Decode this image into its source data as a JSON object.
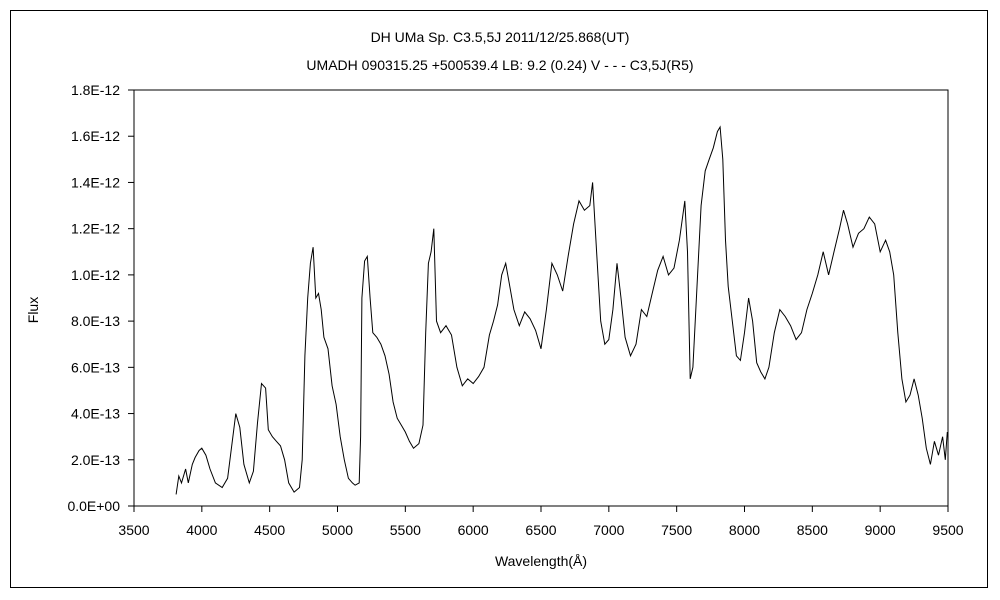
{
  "chart_data": {
    "type": "line",
    "title": "DH UMa    Sp. C3.5,5J    2011/12/25.868(UT)",
    "subtitle": "UMADH 090315.25 +500539.4 LB: 9.2 (0.24) V - - - C3,5J(R5)",
    "xlabel": "Wavelength(Å)",
    "ylabel": "Flux",
    "xlim": [
      3500,
      9500
    ],
    "ylim": [
      0,
      1.8e-12
    ],
    "x_ticks": [
      "3500",
      "4000",
      "4500",
      "5000",
      "5500",
      "6000",
      "6500",
      "7000",
      "7500",
      "8000",
      "8500",
      "9000",
      "9500"
    ],
    "y_ticks": [
      "0.0E+00",
      "2.0E-13",
      "4.0E-13",
      "6.0E-13",
      "8.0E-13",
      "1.0E-12",
      "1.2E-12",
      "1.4E-12",
      "1.6E-12",
      "1.8E-12"
    ],
    "grid": false,
    "legend": "none",
    "series": [
      {
        "color": "#000000",
        "points": [
          [
            3810,
            5e-14
          ],
          [
            3830,
            1.3e-13
          ],
          [
            3850,
            1e-13
          ],
          [
            3880,
            1.6e-13
          ],
          [
            3900,
            1e-13
          ],
          [
            3930,
            1.8e-13
          ],
          [
            3950,
            2.1e-13
          ],
          [
            3980,
            2.4e-13
          ],
          [
            4000,
            2.5e-13
          ],
          [
            4030,
            2.2e-13
          ],
          [
            4060,
            1.6e-13
          ],
          [
            4100,
            1e-13
          ],
          [
            4150,
            8e-14
          ],
          [
            4190,
            1.2e-13
          ],
          [
            4220,
            2.6e-13
          ],
          [
            4250,
            4e-13
          ],
          [
            4280,
            3.4e-13
          ],
          [
            4310,
            1.8e-13
          ],
          [
            4350,
            1e-13
          ],
          [
            4380,
            1.5e-13
          ],
          [
            4410,
            3.6e-13
          ],
          [
            4440,
            5.3e-13
          ],
          [
            4470,
            5.1e-13
          ],
          [
            4490,
            3.3e-13
          ],
          [
            4520,
            3e-13
          ],
          [
            4550,
            2.8e-13
          ],
          [
            4580,
            2.6e-13
          ],
          [
            4610,
            2e-13
          ],
          [
            4640,
            1e-13
          ],
          [
            4680,
            6e-14
          ],
          [
            4720,
            8e-14
          ],
          [
            4740,
            2e-13
          ],
          [
            4760,
            6.5e-13
          ],
          [
            4780,
            9e-13
          ],
          [
            4800,
            1.05e-12
          ],
          [
            4820,
            1.12e-12
          ],
          [
            4840,
            9e-13
          ],
          [
            4860,
            9.2e-13
          ],
          [
            4880,
            8.5e-13
          ],
          [
            4900,
            7.3e-13
          ],
          [
            4930,
            6.8e-13
          ],
          [
            4960,
            5.2e-13
          ],
          [
            4990,
            4.4e-13
          ],
          [
            5020,
            3e-13
          ],
          [
            5050,
            2e-13
          ],
          [
            5080,
            1.2e-13
          ],
          [
            5110,
            1e-13
          ],
          [
            5130,
            9e-14
          ],
          [
            5160,
            1e-13
          ],
          [
            5170,
            3e-13
          ],
          [
            5180,
            9e-13
          ],
          [
            5200,
            1.06e-12
          ],
          [
            5220,
            1.08e-12
          ],
          [
            5240,
            9e-13
          ],
          [
            5260,
            7.5e-13
          ],
          [
            5290,
            7.3e-13
          ],
          [
            5320,
            7e-13
          ],
          [
            5350,
            6.5e-13
          ],
          [
            5380,
            5.7e-13
          ],
          [
            5410,
            4.5e-13
          ],
          [
            5440,
            3.8e-13
          ],
          [
            5470,
            3.5e-13
          ],
          [
            5500,
            3.2e-13
          ],
          [
            5530,
            2.8e-13
          ],
          [
            5560,
            2.5e-13
          ],
          [
            5600,
            2.7e-13
          ],
          [
            5630,
            3.5e-13
          ],
          [
            5650,
            7.5e-13
          ],
          [
            5670,
            1.05e-12
          ],
          [
            5690,
            1.1e-12
          ],
          [
            5710,
            1.2e-12
          ],
          [
            5730,
            8e-13
          ],
          [
            5760,
            7.5e-13
          ],
          [
            5800,
            7.8e-13
          ],
          [
            5840,
            7.4e-13
          ],
          [
            5880,
            6e-13
          ],
          [
            5920,
            5.2e-13
          ],
          [
            5960,
            5.5e-13
          ],
          [
            6000,
            5.3e-13
          ],
          [
            6040,
            5.6e-13
          ],
          [
            6080,
            6e-13
          ],
          [
            6120,
            7.4e-13
          ],
          [
            6150,
            8e-13
          ],
          [
            6180,
            8.7e-13
          ],
          [
            6210,
            1e-12
          ],
          [
            6240,
            1.05e-12
          ],
          [
            6270,
            9.5e-13
          ],
          [
            6300,
            8.5e-13
          ],
          [
            6340,
            7.8e-13
          ],
          [
            6380,
            8.4e-13
          ],
          [
            6420,
            8.1e-13
          ],
          [
            6460,
            7.6e-13
          ],
          [
            6500,
            6.8e-13
          ],
          [
            6540,
            8.5e-13
          ],
          [
            6580,
            1.05e-12
          ],
          [
            6620,
            1e-12
          ],
          [
            6660,
            9.3e-13
          ],
          [
            6700,
            1.08e-12
          ],
          [
            6740,
            1.22e-12
          ],
          [
            6780,
            1.32e-12
          ],
          [
            6820,
            1.28e-12
          ],
          [
            6860,
            1.3e-12
          ],
          [
            6880,
            1.4e-12
          ],
          [
            6910,
            1.1e-12
          ],
          [
            6940,
            8e-13
          ],
          [
            6970,
            7e-13
          ],
          [
            7000,
            7.2e-13
          ],
          [
            7030,
            8.5e-13
          ],
          [
            7060,
            1.05e-12
          ],
          [
            7090,
            9e-13
          ],
          [
            7120,
            7.3e-13
          ],
          [
            7160,
            6.5e-13
          ],
          [
            7200,
            7e-13
          ],
          [
            7240,
            8.5e-13
          ],
          [
            7280,
            8.2e-13
          ],
          [
            7320,
            9.2e-13
          ],
          [
            7360,
            1.02e-12
          ],
          [
            7400,
            1.08e-12
          ],
          [
            7440,
            1e-12
          ],
          [
            7480,
            1.03e-12
          ],
          [
            7520,
            1.15e-12
          ],
          [
            7560,
            1.32e-12
          ],
          [
            7580,
            1.1e-12
          ],
          [
            7600,
            5.5e-13
          ],
          [
            7620,
            6e-13
          ],
          [
            7650,
            9.5e-13
          ],
          [
            7680,
            1.3e-12
          ],
          [
            7710,
            1.45e-12
          ],
          [
            7740,
            1.5e-12
          ],
          [
            7770,
            1.55e-12
          ],
          [
            7800,
            1.62e-12
          ],
          [
            7820,
            1.64e-12
          ],
          [
            7840,
            1.5e-12
          ],
          [
            7860,
            1.15e-12
          ],
          [
            7880,
            9.5e-13
          ],
          [
            7910,
            8e-13
          ],
          [
            7940,
            6.5e-13
          ],
          [
            7970,
            6.3e-13
          ],
          [
            8000,
            7.5e-13
          ],
          [
            8030,
            9e-13
          ],
          [
            8060,
            8e-13
          ],
          [
            8090,
            6.2e-13
          ],
          [
            8120,
            5.8e-13
          ],
          [
            8150,
            5.5e-13
          ],
          [
            8180,
            6e-13
          ],
          [
            8220,
            7.5e-13
          ],
          [
            8260,
            8.5e-13
          ],
          [
            8300,
            8.2e-13
          ],
          [
            8340,
            7.8e-13
          ],
          [
            8380,
            7.2e-13
          ],
          [
            8420,
            7.5e-13
          ],
          [
            8460,
            8.5e-13
          ],
          [
            8500,
            9.2e-13
          ],
          [
            8540,
            1e-12
          ],
          [
            8580,
            1.1e-12
          ],
          [
            8620,
            1e-12
          ],
          [
            8660,
            1.1e-12
          ],
          [
            8700,
            1.2e-12
          ],
          [
            8730,
            1.28e-12
          ],
          [
            8760,
            1.22e-12
          ],
          [
            8800,
            1.12e-12
          ],
          [
            8840,
            1.18e-12
          ],
          [
            8880,
            1.2e-12
          ],
          [
            8920,
            1.25e-12
          ],
          [
            8960,
            1.22e-12
          ],
          [
            9000,
            1.1e-12
          ],
          [
            9040,
            1.15e-12
          ],
          [
            9070,
            1.1e-12
          ],
          [
            9100,
            1e-12
          ],
          [
            9130,
            7.5e-13
          ],
          [
            9160,
            5.5e-13
          ],
          [
            9190,
            4.5e-13
          ],
          [
            9220,
            4.8e-13
          ],
          [
            9250,
            5.5e-13
          ],
          [
            9280,
            4.8e-13
          ],
          [
            9310,
            3.8e-13
          ],
          [
            9340,
            2.5e-13
          ],
          [
            9370,
            1.8e-13
          ],
          [
            9400,
            2.8e-13
          ],
          [
            9430,
            2.2e-13
          ],
          [
            9460,
            3e-13
          ],
          [
            9480,
            2e-13
          ],
          [
            9495,
            3.2e-13
          ]
        ]
      }
    ]
  }
}
